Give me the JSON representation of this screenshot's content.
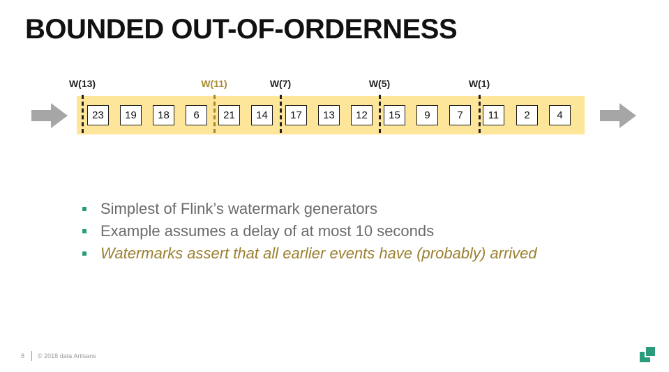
{
  "title": "BOUNDED OUT-OF-ORDERNESS",
  "stream": {
    "events": [
      "23",
      "19",
      "18",
      "6",
      "21",
      "14",
      "17",
      "13",
      "12",
      "15",
      "9",
      "7",
      "11",
      "2",
      "4"
    ],
    "watermarks": [
      {
        "label": "W(13)",
        "color": "#222222"
      },
      {
        "label": "W(11)",
        "color": "#a58a2e"
      },
      {
        "label": "W(7)",
        "color": "#222222"
      },
      {
        "label": "W(5)",
        "color": "#222222"
      },
      {
        "label": "W(1)",
        "color": "#222222"
      }
    ],
    "band_color": "#fde69a",
    "arrow_color": "#a6a6a6"
  },
  "bullets": [
    "Simplest of Flink’s watermark generators",
    "Example assumes a delay of at most 10 seconds",
    "Watermarks assert that all earlier events have (probably) arrived"
  ],
  "bullet_color": "#2a9c7b",
  "footer": {
    "page_number": "8",
    "copyright": "© 2018 data Artisans"
  },
  "logo_icon": "data-artisans-logo-icon",
  "logo_color": "#2a9c7b"
}
